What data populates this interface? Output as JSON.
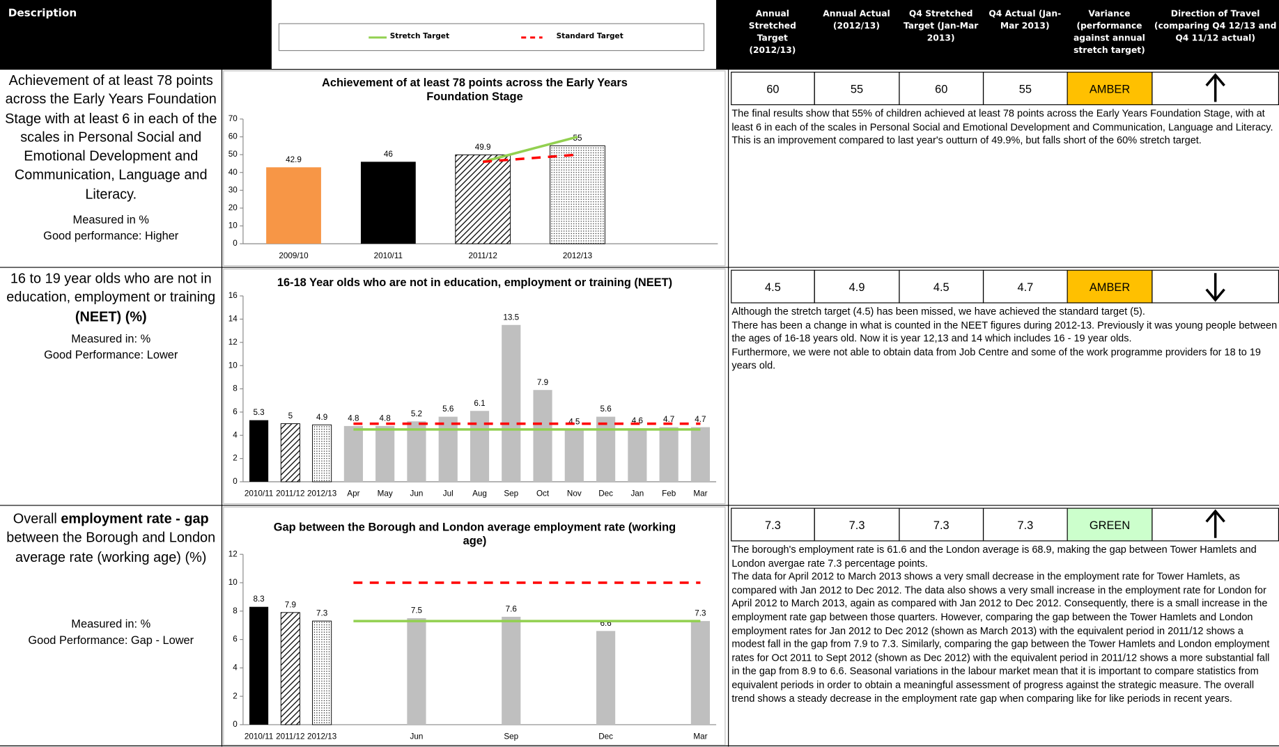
{
  "header": {
    "description": "Description",
    "legend": [
      {
        "name": "Stretch Target",
        "color": "#92d050",
        "style": "solid"
      },
      {
        "name": "Standard Target",
        "color": "#ff0000",
        "style": "dashed"
      }
    ],
    "columns": [
      "Annual Stretched Target (2012/13)",
      "Annual Actual (2012/13)",
      "Q4 Stretched Target (Jan-Mar 2013)",
      "Q4 Actual (Jan-Mar 2013)",
      "Variance (performance against annual stretch target)",
      "Direction of Travel (comparing Q4 12/13 and Q4 11/12 actual)"
    ]
  },
  "rows": [
    {
      "description": [
        {
          "text": "Achievement of at least 78 points across the Early Years Foundation Stage with at least 6 in each of the scales in Personal Social and Emotional Development and Communication, Language and Literacy.",
          "bold": false
        }
      ],
      "measure": [
        "Measured in %",
        "Good performance: Higher"
      ],
      "chart": {
        "type": "bar",
        "title": "Achievement of at least 78 points across the Early Years Foundation Stage",
        "categories": [
          "2009/10",
          "2010/11",
          "2011/12",
          "2012/13"
        ],
        "values": [
          42.9,
          46,
          49.9,
          55
        ],
        "bar_colors": [
          "#f79646",
          "#000000",
          "#000000",
          "#000000"
        ],
        "bar_patterns": [
          "solid",
          "solid",
          "hatch",
          "dots"
        ],
        "stretch_target": [
          null,
          null,
          46,
          60
        ],
        "standard_target": [
          null,
          null,
          46,
          50
        ],
        "ylim": [
          0,
          70
        ],
        "yticks": [
          0,
          10,
          20,
          30,
          40,
          50,
          60,
          70
        ]
      },
      "metrics": [
        60,
        55,
        60,
        55
      ],
      "variance": "AMBER",
      "variance_color": "#ffc000",
      "direction": "up",
      "commentary": [
        "The final results show that 55% of children achieved at least 78 points across the Early Years Foundation Stage, with at least 6 in each of the scales in Personal Social and Emotional Development and Communication, Language and Literacy. This is an improvement compared to last year's outturn of 49.9%, but falls short of the 60% stretch target."
      ]
    },
    {
      "description": [
        {
          "text": "16 to 19 year olds who are not in education, employment or training ",
          "bold": false
        },
        {
          "text": "(NEET) (%)",
          "bold": true
        }
      ],
      "measure": [
        "Measured in: %",
        "Good Performance: Lower"
      ],
      "chart": {
        "type": "bar",
        "title": "16-18 Year olds who are not in education, employment or training (NEET)",
        "categories": [
          "2010/11",
          "2011/12",
          "2012/13",
          "Apr",
          "May",
          "Jun",
          "Jul",
          "Aug",
          "Sep",
          "Oct",
          "Nov",
          "Dec",
          "Jan",
          "Feb",
          "Mar"
        ],
        "values": [
          5.3,
          5,
          4.9,
          4.8,
          4.8,
          5.2,
          5.6,
          6.1,
          13.5,
          7.9,
          4.5,
          5.6,
          4.6,
          4.7,
          4.7
        ],
        "bar_colors": [
          "#000000",
          "#000000",
          "#000000",
          "#bfbfbf",
          "#bfbfbf",
          "#bfbfbf",
          "#bfbfbf",
          "#bfbfbf",
          "#bfbfbf",
          "#bfbfbf",
          "#bfbfbf",
          "#bfbfbf",
          "#bfbfbf",
          "#bfbfbf",
          "#bfbfbf"
        ],
        "bar_patterns": [
          "solid",
          "hatch",
          "dots",
          "solid",
          "solid",
          "solid",
          "solid",
          "solid",
          "solid",
          "solid",
          "solid",
          "solid",
          "solid",
          "solid",
          "solid"
        ],
        "stretch_target": [
          null,
          null,
          null,
          4.5,
          4.5,
          4.5,
          4.5,
          4.5,
          4.5,
          4.5,
          4.5,
          4.5,
          4.5,
          4.5,
          4.5
        ],
        "standard_target": [
          null,
          null,
          null,
          5,
          5,
          5,
          5,
          5,
          5,
          5,
          5,
          5,
          5,
          5,
          5
        ],
        "ylim": [
          0,
          16
        ],
        "yticks": [
          0,
          2,
          4,
          6,
          8,
          10,
          12,
          14,
          16
        ]
      },
      "metrics": [
        4.5,
        4.9,
        4.5,
        4.7
      ],
      "variance": "AMBER",
      "variance_color": "#ffc000",
      "direction": "down",
      "commentary": [
        "Although the stretch target (4.5) has been missed, we have achieved the standard target (5).",
        "There has been a change in what is counted in the NEET figures during 2012-13. Previously it was young people between the ages of  16-18 years old.  Now it is year 12,13 and 14 which includes 16 - 19 year olds.",
        "Furthermore, we were not able to obtain data from Job Centre and some of the work programme providers for 18 to 19 years old."
      ]
    },
    {
      "description": [
        {
          "text": "Overall ",
          "bold": false
        },
        {
          "text": "employment rate - gap",
          "bold": true
        },
        {
          "text": " between the Borough and London average rate (working age) (%)",
          "bold": false
        }
      ],
      "measure": [
        "Measured in: %",
        "Good Performance: Gap - Lower"
      ],
      "chart": {
        "type": "bar",
        "title": "Gap between the Borough and London average employment rate (working age)",
        "categories": [
          "2010/11",
          "2011/12",
          "2012/13",
          null,
          null,
          "Jun",
          null,
          null,
          "Sep",
          null,
          null,
          "Dec",
          null,
          null,
          "Mar"
        ],
        "values": [
          8.3,
          7.9,
          7.3,
          null,
          null,
          7.5,
          null,
          null,
          7.6,
          null,
          null,
          6.6,
          null,
          null,
          7.3
        ],
        "bar_colors": [
          "#000000",
          "#000000",
          "#000000",
          null,
          null,
          "#bfbfbf",
          null,
          null,
          "#bfbfbf",
          null,
          null,
          "#bfbfbf",
          null,
          null,
          "#bfbfbf"
        ],
        "bar_patterns": [
          "solid",
          "hatch",
          "dots",
          null,
          null,
          "solid",
          null,
          null,
          "solid",
          null,
          null,
          "solid",
          null,
          null,
          "solid"
        ],
        "stretch_target": [
          null,
          null,
          null,
          7.3,
          7.3,
          7.3,
          7.3,
          7.3,
          7.3,
          7.3,
          7.3,
          7.3,
          7.3,
          7.3,
          7.3
        ],
        "standard_target": [
          null,
          null,
          null,
          10,
          10,
          10,
          10,
          10,
          10,
          10,
          10,
          10,
          10,
          10,
          10
        ],
        "ylim": [
          0,
          12
        ],
        "yticks": [
          0,
          2,
          4,
          6,
          8,
          10,
          12
        ]
      },
      "metrics": [
        7.3,
        7.3,
        7.3,
        7.3
      ],
      "variance": "GREEN",
      "variance_color": "#ccffcc",
      "direction": "up",
      "commentary": [
        "The borough's employment rate is 61.6 and the London average is 68.9, making the gap between Tower Hamlets and London avergae rate 7.3 percentage points.",
        "The data for April 2012 to March 2013 shows a very small decrease in the employment rate for Tower Hamlets, as compared with Jan 2012 to Dec 2012. The data also shows a very small increase in the employment rate for London for April 2012 to March 2013, again as compared with Jan 2012 to Dec 2012. Consequently, there is a small increase in the employment rate gap between those quarters. However, comparing the gap between the Tower Hamlets and London employment rates for Jan 2012 to Dec 2012 (shown as March 2013) with the equivalent period in 2011/12 shows a modest fall in the gap from 7.9 to 7.3. Similarly, comparing the gap between the Tower Hamlets and London employment rates for Oct 2011 to Sept 2012 (shown as Dec 2012) with the equivalent period in 2011/12 shows a more substantial fall in the gap from 8.9 to 6.6. Seasonal variations in the labour market mean that it is important to compare statistics from equivalent periods in order to obtain a meaningful assessment of progress against the strategic measure. The overall trend shows a steady decrease in the employment rate gap when comparing like for like periods in recent years."
      ]
    }
  ]
}
